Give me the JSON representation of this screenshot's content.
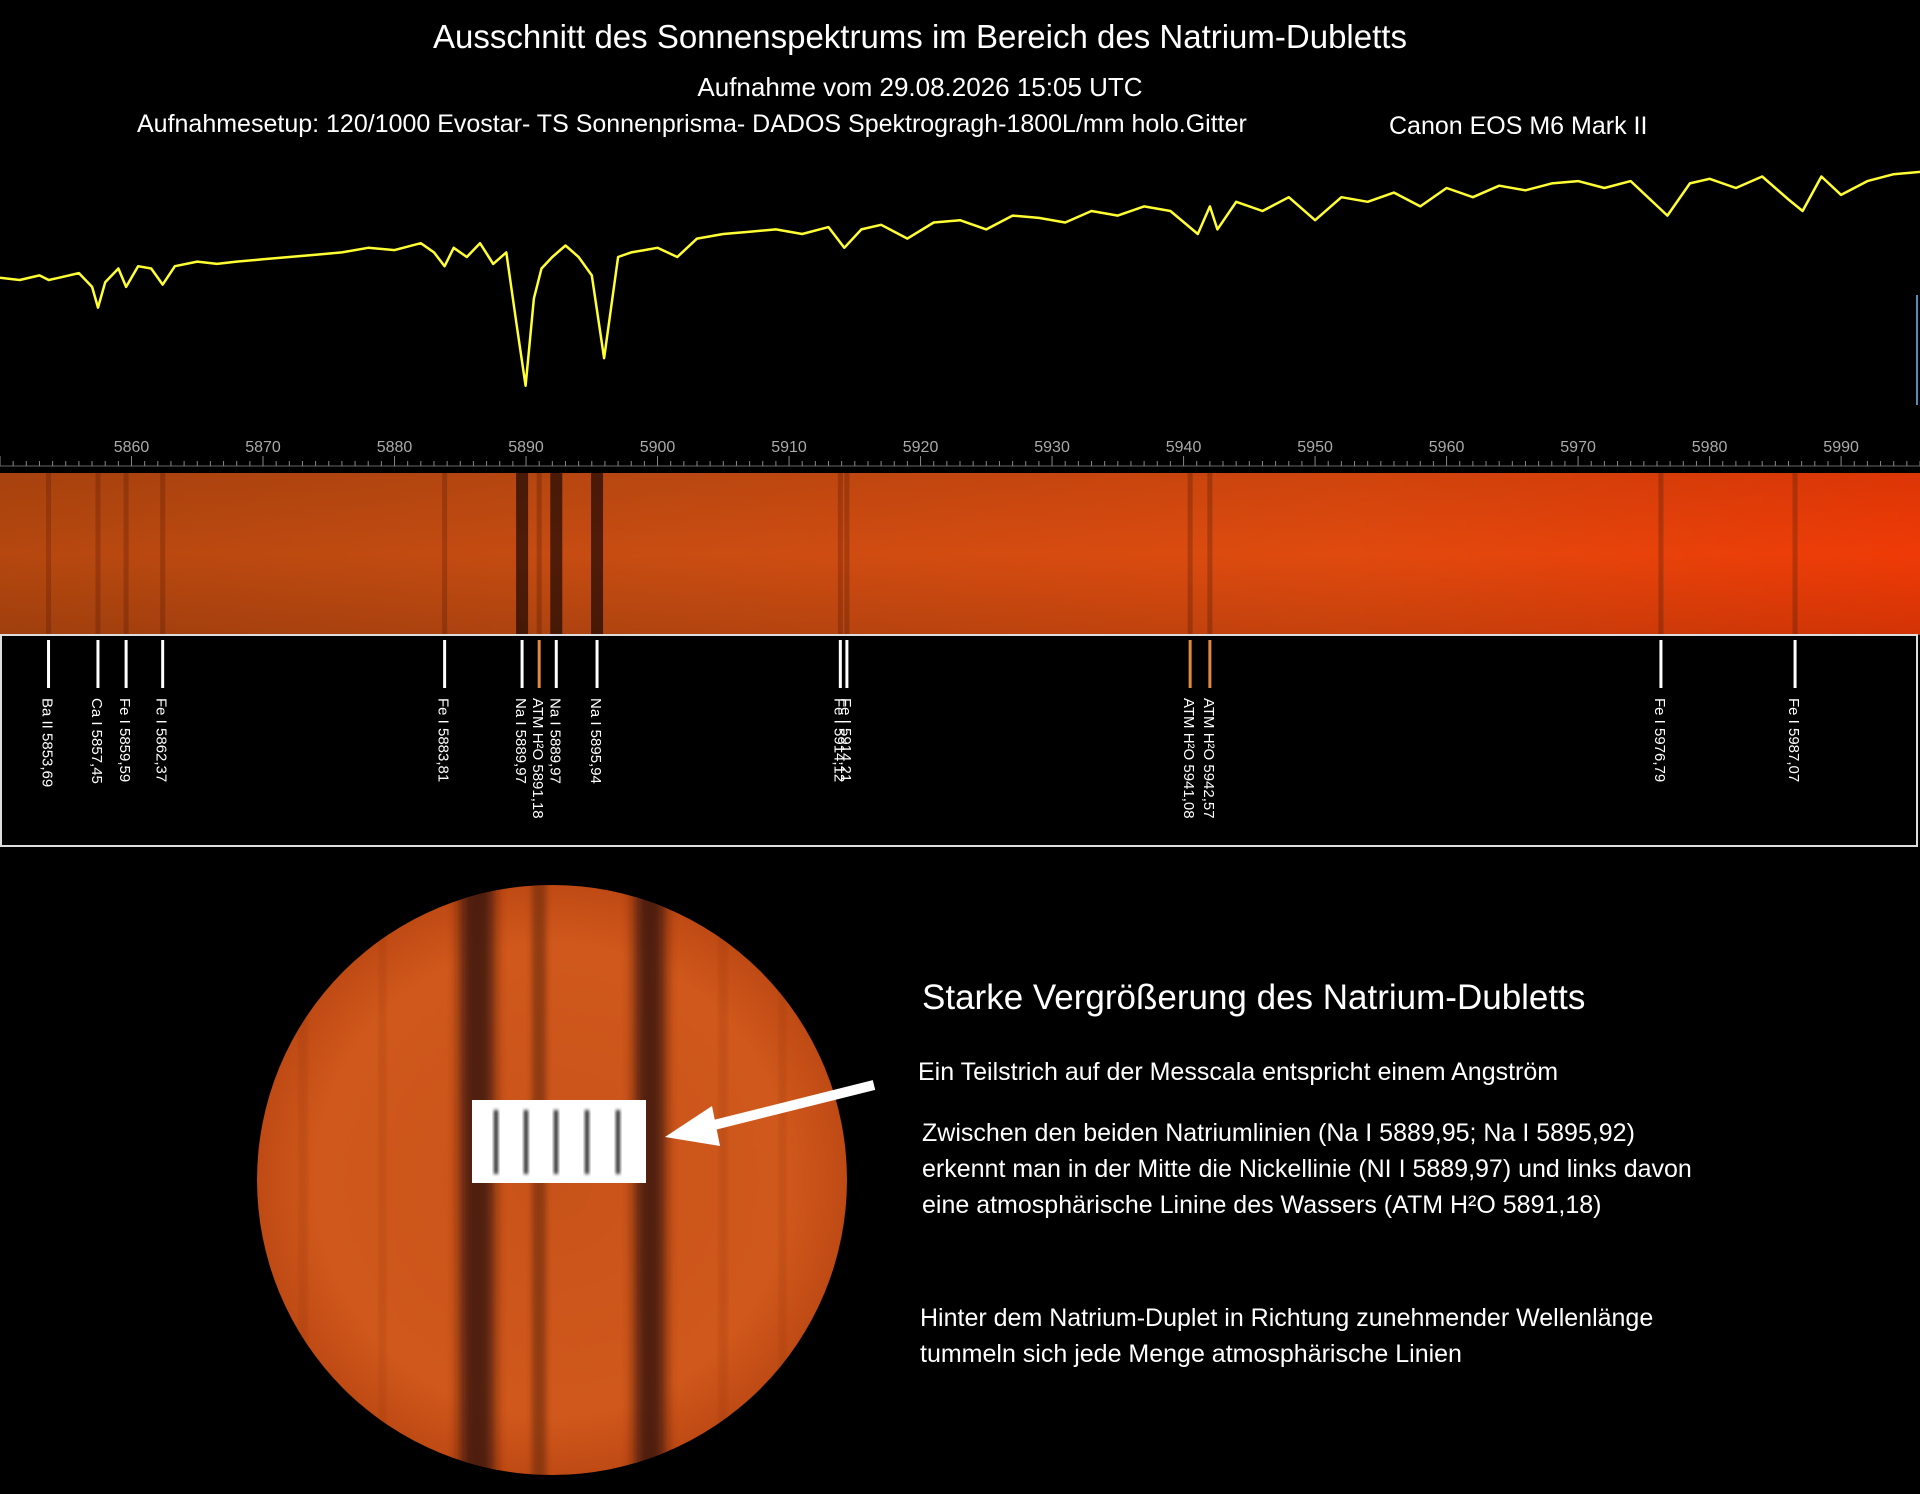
{
  "header": {
    "title": "Ausschnitt des Sonnenspektrums im Bereich des Natrium-Dubletts",
    "subtitle": "Aufnahme vom 29.08.2026 15:05 UTC",
    "setup": "Aufnahmesetup: 120/1000 Evostar- TS Sonnenprisma- DADOS Spektrogragh-1800L/mm holo.Gitter",
    "camera": "Canon EOS M6 Mark II"
  },
  "chart_data": {
    "type": "line",
    "title": "Ausschnitt des Sonnenspektrums im Bereich des Natrium-Dubletts",
    "xlabel": "",
    "ylabel": "",
    "xlim": [
      5850,
      5996
    ],
    "ylim": [
      0,
      1
    ],
    "grid": false,
    "color": "#ffff33",
    "x_ticks": [
      5860,
      5870,
      5880,
      5890,
      5900,
      5910,
      5920,
      5930,
      5940,
      5950,
      5960,
      5970,
      5980,
      5990
    ],
    "series": [
      {
        "x": [
          5850.0,
          5851.5,
          5853.0,
          5853.7,
          5854.5,
          5856.0,
          5857.0,
          5857.45,
          5858.0,
          5859.0,
          5859.59,
          5860.5,
          5861.5,
          5862.37,
          5863.3,
          5865.0,
          5866.5,
          5868.0,
          5870.0,
          5872.0,
          5874.0,
          5876.0,
          5878.0,
          5880.0,
          5882.0,
          5883.0,
          5883.81,
          5884.5,
          5885.5,
          5886.5,
          5887.5,
          5888.5,
          5889.3,
          5889.97,
          5890.6,
          5891.18,
          5892.0,
          5893.0,
          5894.0,
          5895.0,
          5895.94,
          5897.0,
          5898.0,
          5899.0,
          5900.0,
          5901.5,
          5903.0,
          5905.0,
          5907.0,
          5909.0,
          5911.0,
          5913.0,
          5914.2,
          5915.5,
          5917.0,
          5919.0,
          5921.0,
          5923.0,
          5925.0,
          5927.0,
          5929.0,
          5931.0,
          5933.0,
          5935.0,
          5937.0,
          5939.0,
          5941.08,
          5942.0,
          5942.57,
          5944.0,
          5946.0,
          5948.0,
          5950.0,
          5952.0,
          5954.0,
          5956.0,
          5958.0,
          5960.0,
          5962.0,
          5964.0,
          5966.0,
          5968.0,
          5970.0,
          5972.0,
          5974.0,
          5976.79,
          5978.5,
          5980.0,
          5982.0,
          5984.0,
          5986.0,
          5987.07,
          5988.5,
          5990.0,
          5992.0,
          5994.0,
          5996.0
        ],
        "y": [
          0.51,
          0.5,
          0.52,
          0.5,
          0.51,
          0.53,
          0.47,
          0.38,
          0.49,
          0.55,
          0.47,
          0.56,
          0.55,
          0.48,
          0.56,
          0.58,
          0.57,
          0.58,
          0.59,
          0.6,
          0.61,
          0.62,
          0.64,
          0.63,
          0.66,
          0.62,
          0.56,
          0.64,
          0.6,
          0.66,
          0.57,
          0.62,
          0.3,
          0.04,
          0.42,
          0.55,
          0.6,
          0.65,
          0.6,
          0.52,
          0.16,
          0.6,
          0.62,
          0.63,
          0.64,
          0.6,
          0.68,
          0.7,
          0.71,
          0.72,
          0.7,
          0.73,
          0.64,
          0.72,
          0.74,
          0.68,
          0.75,
          0.76,
          0.72,
          0.78,
          0.77,
          0.75,
          0.8,
          0.78,
          0.82,
          0.8,
          0.7,
          0.82,
          0.72,
          0.84,
          0.8,
          0.86,
          0.76,
          0.86,
          0.84,
          0.88,
          0.82,
          0.9,
          0.86,
          0.91,
          0.89,
          0.92,
          0.93,
          0.9,
          0.93,
          0.78,
          0.92,
          0.94,
          0.9,
          0.95,
          0.85,
          0.8,
          0.95,
          0.87,
          0.93,
          0.96,
          0.97
        ]
      }
    ],
    "lines": [
      {
        "label": "Ba II  5853,69",
        "x": 5853.69,
        "color": "#ffffff"
      },
      {
        "label": "Ca I  5857,45",
        "x": 5857.45,
        "color": "#ffffff"
      },
      {
        "label": "Fe I  5859,59",
        "x": 5859.59,
        "color": "#ffffff"
      },
      {
        "label": "Fe I  5862,37",
        "x": 5862.37,
        "color": "#ffffff"
      },
      {
        "label": "Fe I  5883,81",
        "x": 5883.81,
        "color": "#ffffff"
      },
      {
        "label": "Na I  5889,97",
        "x": 5889.7,
        "color": "#ffffff"
      },
      {
        "label": "ATM  H²O 5891,18",
        "x": 5891.0,
        "color": "#e08a3c"
      },
      {
        "label": "Na I  5889,97",
        "x": 5892.3,
        "color": "#ffffff"
      },
      {
        "label": "Na I  5895,94",
        "x": 5895.4,
        "color": "#ffffff"
      },
      {
        "label": "Fe I  5914,12",
        "x": 5913.9,
        "color": "#ffffff"
      },
      {
        "label": "Fe I  5914,21",
        "x": 5914.4,
        "color": "#ffffff"
      },
      {
        "label": "ATM H²O  5941,08",
        "x": 5940.5,
        "color": "#e08a3c"
      },
      {
        "label": "ATM H²O  5942,57",
        "x": 5942.0,
        "color": "#e08a3c"
      },
      {
        "label": "Fe I  5976,79",
        "x": 5976.3,
        "color": "#ffffff"
      },
      {
        "label": "Fe I  5987,07",
        "x": 5986.5,
        "color": "#ffffff"
      }
    ]
  },
  "zoom": {
    "title": "Starke Vergrößerung des Natrium-Dubletts",
    "scale_note": "Ein Teilstrich auf der Messcala entspricht einem Angström",
    "paragraph1": "Zwischen den beiden Natriumlinien (Na I  5889,95; Na I 5895,92) erkennt man in der Mitte die Nickellinie (NI I 5889,97) und links davon eine atmosphärische Linine des Wassers (ATM H²O 5891,18)",
    "paragraph2": "Hinter dem Natrium-Duplet in Richtung zunehmender Wellenlänge tummeln sich jede Menge atmosphärische Linien"
  }
}
